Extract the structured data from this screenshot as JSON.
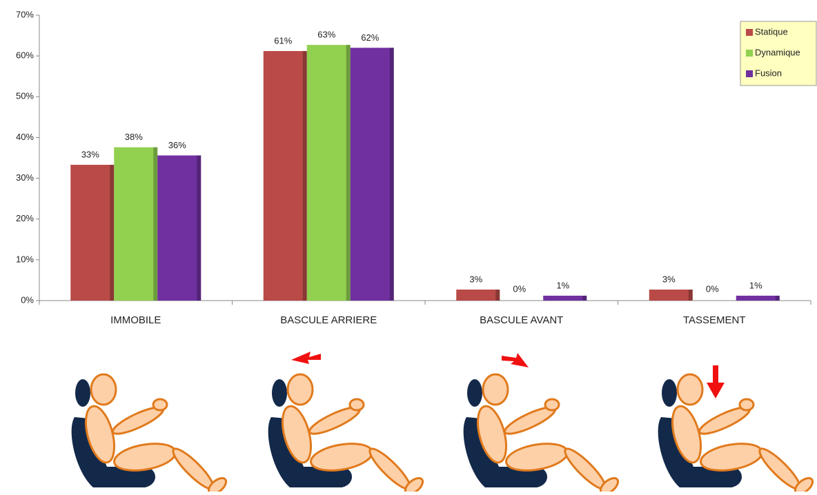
{
  "chart_data": {
    "type": "bar",
    "categories": [
      "IMMOBILE",
      "BASCULE ARRIERE",
      "BASCULE AVANT",
      "TASSEMENT"
    ],
    "series": [
      {
        "name": "Statique",
        "color": "#b94a47",
        "values": [
          33.3,
          61.2,
          2.7,
          2.7
        ],
        "value_labels": [
          "33%",
          "61%",
          "3%",
          "3%"
        ]
      },
      {
        "name": "Dynamique",
        "color": "#92d050",
        "values": [
          37.6,
          62.7,
          0,
          0
        ],
        "value_labels": [
          "38%",
          "63%",
          "0%",
          "0%"
        ]
      },
      {
        "name": "Fusion",
        "color": "#7030a0",
        "values": [
          35.6,
          62,
          1.2,
          1.2
        ],
        "value_labels": [
          "36%",
          "62%",
          "1%",
          "1%"
        ]
      }
    ],
    "ylim": [
      0,
      70
    ],
    "yticks": [
      {
        "value": 0,
        "label": "0%"
      },
      {
        "value": 10,
        "label": "10%"
      },
      {
        "value": 20,
        "label": "20%"
      },
      {
        "value": 30,
        "label": "30%"
      },
      {
        "value": 40,
        "label": "40%"
      },
      {
        "value": 50,
        "label": "50%"
      },
      {
        "value": 60,
        "label": "60%"
      },
      {
        "value": 70,
        "label": "70%"
      }
    ],
    "grid": false,
    "legend": "upper right"
  }
}
